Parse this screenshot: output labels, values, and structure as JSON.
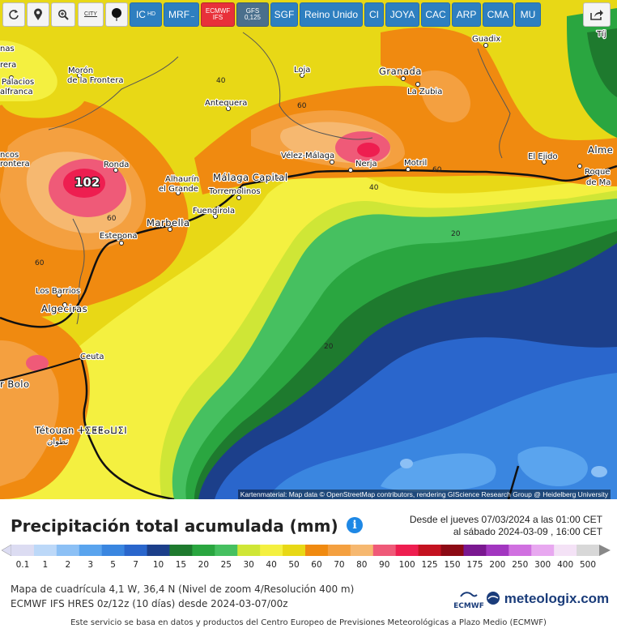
{
  "toolbar": {
    "buttons": [
      {
        "id": "refresh",
        "label": "",
        "icon": "refresh-icon",
        "style": "w"
      },
      {
        "id": "location",
        "label": "",
        "icon": "map-pin-icon",
        "style": "w"
      },
      {
        "id": "zoom",
        "label": "",
        "icon": "zoom-icon",
        "style": "w"
      },
      {
        "id": "city",
        "label": "CITY",
        "icon": "",
        "style": "w"
      },
      {
        "id": "balloon",
        "label": "",
        "icon": "balloon-icon",
        "style": "w"
      },
      {
        "id": "ic",
        "label": "IC",
        "sub": "HD",
        "style": "b"
      },
      {
        "id": "mrf",
        "label": "MRF",
        "sub": "_",
        "style": "b"
      },
      {
        "id": "ecmwf",
        "label": "ECMWF IFS",
        "style": "r"
      },
      {
        "id": "gfs",
        "label": "GFS 0,125",
        "style": "g"
      },
      {
        "id": "sgf",
        "label": "SGF",
        "style": "b"
      },
      {
        "id": "reino",
        "label": "Reino Unido",
        "style": "b"
      },
      {
        "id": "ci",
        "label": "CI",
        "style": "b"
      },
      {
        "id": "joya",
        "label": "JOYA",
        "style": "b"
      },
      {
        "id": "cac",
        "label": "CAC",
        "style": "b"
      },
      {
        "id": "arp",
        "label": "ARP",
        "style": "b"
      },
      {
        "id": "cma",
        "label": "CMA",
        "style": "b"
      },
      {
        "id": "mu",
        "label": "MU",
        "style": "b"
      },
      {
        "id": "share",
        "label": "",
        "icon": "share-icon",
        "style": "w"
      }
    ]
  },
  "map": {
    "places": [
      "Guadix",
      "nas",
      "rera",
      "Morón",
      "de la Frontera",
      "Palacios",
      "alfranca",
      "Loja",
      "Granada",
      "La Zubia",
      "Antequera",
      "ncos",
      "rontera",
      "Ronda",
      "Vélez-Málaga",
      "Nerja",
      "Motril",
      "El Ejido",
      "Alme",
      "Roque",
      "de Ma",
      "Alhaurín",
      "el Grande",
      "Málaga Capital",
      "Torremolinos",
      "Fuengirola",
      "Marbella",
      "Estepona",
      "Los Barrios",
      "Algeciras",
      "Ceuta",
      "r Bolo",
      "Tétouan ⵜⵉⵟⵟⴰⵡⵉⵏ",
      "تطوان",
      "Tíj"
    ],
    "max_label": "102",
    "isolines": [
      "40",
      "60",
      "60",
      "60",
      "60",
      "40",
      "20",
      "20"
    ],
    "credit": "Kartenmaterial: Map data © OpenStreetMap contributors, rendering GIScience Research Group @ Heidelberg University"
  },
  "header": {
    "title": "Precipitación total acumulada (mm)",
    "info_icon": "info-icon",
    "period_line1": "Desde el jueves 07/03/2024 a  las 01:00 CET",
    "period_line2": "al sábado 2024-03-09 ,  16:00 CET"
  },
  "legend": {
    "values": [
      "0.1",
      "1",
      "2",
      "3",
      "5",
      "7",
      "10",
      "15",
      "20",
      "25",
      "30",
      "40",
      "50",
      "60",
      "70",
      "80",
      "90",
      "100",
      "125",
      "150",
      "175",
      "200",
      "250",
      "300",
      "400",
      "500"
    ],
    "colors": [
      "#dcdcf2",
      "#bcd8f8",
      "#8cc0f5",
      "#5aa4ee",
      "#3a86e0",
      "#2a66cc",
      "#1c3f8a",
      "#1e7a2e",
      "#2aa640",
      "#46c060",
      "#cfe636",
      "#f4f040",
      "#e8d816",
      "#f08a10",
      "#f4a040",
      "#f6b870",
      "#ef5a78",
      "#ee1e50",
      "#c41220",
      "#8c0a14",
      "#7a1890",
      "#a236c0",
      "#d070e0",
      "#e8a8f0",
      "#f4e2f6",
      "#d8d8d8"
    ]
  },
  "meta": {
    "line1": "Mapa de cuadrícula 4,1 W, 36,4 N  (Nivel de zoom 4/Resolución 400 m)",
    "line2": "ECMWF IFS HRES 0z/12z  (10 días)  desde 2024-03-07/00z"
  },
  "brand": {
    "ecmwf": "ECMWF",
    "name": "meteologix.com"
  },
  "footer": "Este servicio se basa en datos y productos del Centro Europeo de Previsiones Meteorológicas a Plazo Medio (ECMWF)"
}
